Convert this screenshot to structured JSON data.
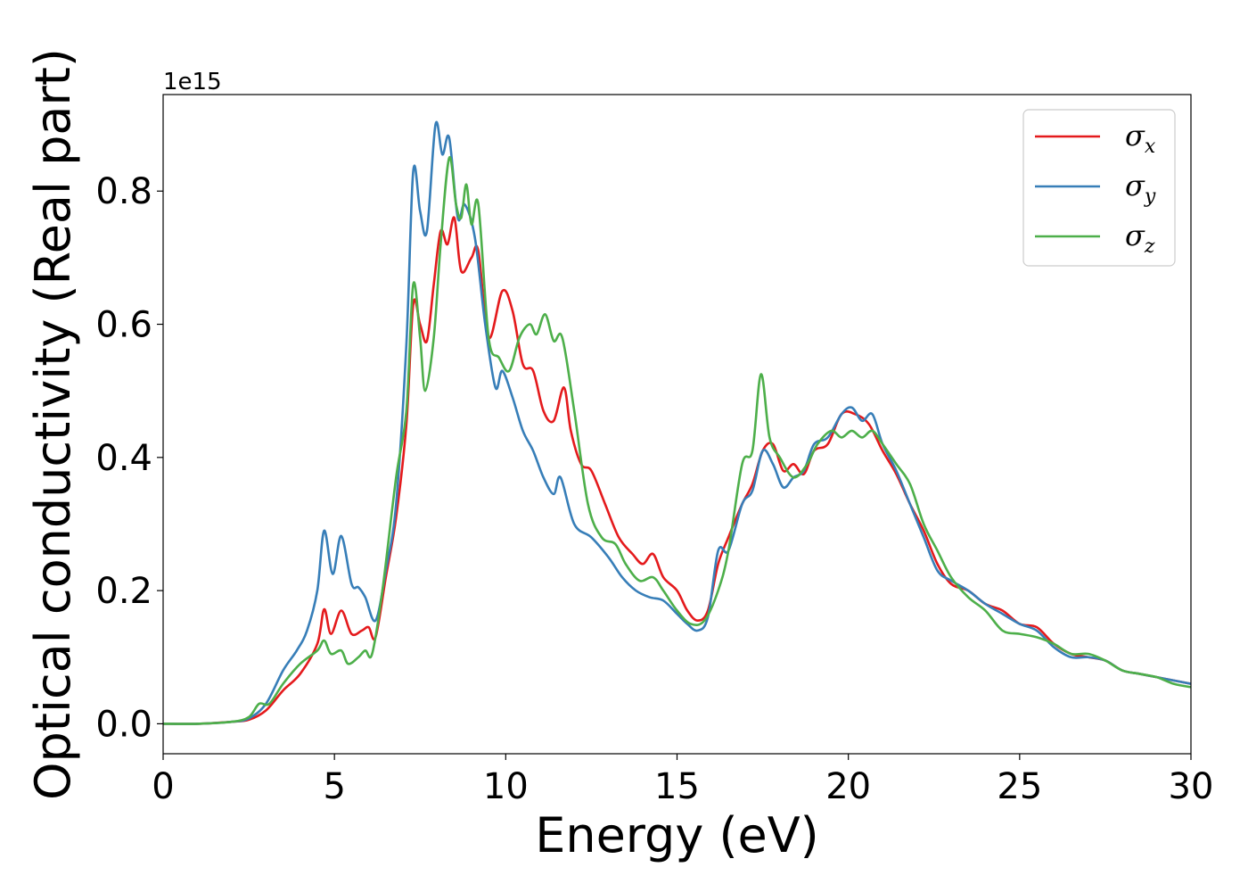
{
  "chart_data": {
    "type": "line",
    "title": "",
    "xlabel": "Energy (eV)",
    "ylabel": "Optical conductivity (Real part)",
    "y_offset_label": "1e15",
    "xlim": [
      0,
      30
    ],
    "ylim": [
      -0.045,
      0.945
    ],
    "xticks": [
      0,
      5,
      10,
      15,
      20,
      25,
      30
    ],
    "xtick_labels": [
      "0",
      "5",
      "10",
      "15",
      "20",
      "25",
      "30"
    ],
    "yticks": [
      0.0,
      0.2,
      0.4,
      0.6,
      0.8
    ],
    "ytick_labels": [
      "0.0",
      "0.2",
      "0.4",
      "0.6",
      "0.8"
    ],
    "grid": false,
    "legend_position": "top-right",
    "series": [
      {
        "name": "σx",
        "sub": "x",
        "color": "#e41a1c",
        "points": [
          [
            0,
            0
          ],
          [
            1,
            0
          ],
          [
            2,
            0.003
          ],
          [
            2.5,
            0.006
          ],
          [
            3,
            0.02
          ],
          [
            3.5,
            0.05
          ],
          [
            4,
            0.075
          ],
          [
            4.5,
            0.12
          ],
          [
            4.7,
            0.172
          ],
          [
            4.9,
            0.135
          ],
          [
            5.2,
            0.17
          ],
          [
            5.5,
            0.135
          ],
          [
            5.8,
            0.14
          ],
          [
            6,
            0.145
          ],
          [
            6.2,
            0.13
          ],
          [
            6.5,
            0.22
          ],
          [
            6.8,
            0.31
          ],
          [
            7.1,
            0.45
          ],
          [
            7.3,
            0.63
          ],
          [
            7.5,
            0.6
          ],
          [
            7.7,
            0.575
          ],
          [
            7.9,
            0.66
          ],
          [
            8.1,
            0.74
          ],
          [
            8.3,
            0.72
          ],
          [
            8.5,
            0.76
          ],
          [
            8.7,
            0.68
          ],
          [
            9,
            0.7
          ],
          [
            9.2,
            0.71
          ],
          [
            9.5,
            0.58
          ],
          [
            9.9,
            0.65
          ],
          [
            10.2,
            0.62
          ],
          [
            10.5,
            0.54
          ],
          [
            10.8,
            0.53
          ],
          [
            11.1,
            0.47
          ],
          [
            11.4,
            0.455
          ],
          [
            11.7,
            0.505
          ],
          [
            11.9,
            0.44
          ],
          [
            12.2,
            0.39
          ],
          [
            12.5,
            0.38
          ],
          [
            12.9,
            0.33
          ],
          [
            13.3,
            0.28
          ],
          [
            13.7,
            0.255
          ],
          [
            14,
            0.24
          ],
          [
            14.3,
            0.255
          ],
          [
            14.6,
            0.22
          ],
          [
            15,
            0.2
          ],
          [
            15.3,
            0.17
          ],
          [
            15.6,
            0.155
          ],
          [
            15.9,
            0.17
          ],
          [
            16.2,
            0.24
          ],
          [
            16.5,
            0.28
          ],
          [
            16.9,
            0.33
          ],
          [
            17.2,
            0.36
          ],
          [
            17.5,
            0.41
          ],
          [
            17.8,
            0.42
          ],
          [
            18.1,
            0.38
          ],
          [
            18.4,
            0.39
          ],
          [
            18.7,
            0.375
          ],
          [
            19,
            0.41
          ],
          [
            19.4,
            0.42
          ],
          [
            19.8,
            0.465
          ],
          [
            20.2,
            0.465
          ],
          [
            20.6,
            0.45
          ],
          [
            21,
            0.41
          ],
          [
            21.4,
            0.375
          ],
          [
            21.8,
            0.33
          ],
          [
            22.2,
            0.29
          ],
          [
            22.6,
            0.24
          ],
          [
            23,
            0.21
          ],
          [
            23.5,
            0.2
          ],
          [
            24,
            0.18
          ],
          [
            24.5,
            0.17
          ],
          [
            25,
            0.15
          ],
          [
            25.5,
            0.145
          ],
          [
            26,
            0.12
          ],
          [
            26.5,
            0.105
          ],
          [
            27,
            0.1
          ],
          [
            27.5,
            0.095
          ],
          [
            28,
            0.08
          ],
          [
            28.5,
            0.075
          ],
          [
            29,
            0.07
          ],
          [
            29.5,
            0.065
          ],
          [
            30,
            0.06
          ]
        ]
      },
      {
        "name": "σy",
        "sub": "y",
        "color": "#377eb8",
        "points": [
          [
            0,
            0
          ],
          [
            1,
            0
          ],
          [
            2,
            0.003
          ],
          [
            2.5,
            0.008
          ],
          [
            3,
            0.03
          ],
          [
            3.5,
            0.08
          ],
          [
            3.9,
            0.11
          ],
          [
            4.2,
            0.14
          ],
          [
            4.5,
            0.2
          ],
          [
            4.7,
            0.29
          ],
          [
            4.95,
            0.225
          ],
          [
            5.2,
            0.282
          ],
          [
            5.5,
            0.21
          ],
          [
            5.7,
            0.205
          ],
          [
            5.9,
            0.19
          ],
          [
            6.2,
            0.155
          ],
          [
            6.5,
            0.23
          ],
          [
            6.8,
            0.33
          ],
          [
            7.1,
            0.57
          ],
          [
            7.3,
            0.83
          ],
          [
            7.5,
            0.77
          ],
          [
            7.7,
            0.74
          ],
          [
            7.95,
            0.9
          ],
          [
            8.15,
            0.855
          ],
          [
            8.35,
            0.88
          ],
          [
            8.6,
            0.76
          ],
          [
            8.8,
            0.78
          ],
          [
            9.1,
            0.73
          ],
          [
            9.4,
            0.6
          ],
          [
            9.7,
            0.505
          ],
          [
            9.9,
            0.53
          ],
          [
            10.2,
            0.49
          ],
          [
            10.5,
            0.44
          ],
          [
            10.8,
            0.41
          ],
          [
            11.1,
            0.37
          ],
          [
            11.4,
            0.345
          ],
          [
            11.6,
            0.37
          ],
          [
            12,
            0.3
          ],
          [
            12.5,
            0.28
          ],
          [
            13,
            0.25
          ],
          [
            13.4,
            0.22
          ],
          [
            13.8,
            0.2
          ],
          [
            14.2,
            0.19
          ],
          [
            14.6,
            0.185
          ],
          [
            15,
            0.165
          ],
          [
            15.3,
            0.15
          ],
          [
            15.6,
            0.14
          ],
          [
            15.9,
            0.16
          ],
          [
            16.2,
            0.26
          ],
          [
            16.5,
            0.26
          ],
          [
            16.9,
            0.33
          ],
          [
            17.2,
            0.35
          ],
          [
            17.5,
            0.41
          ],
          [
            17.8,
            0.39
          ],
          [
            18.1,
            0.355
          ],
          [
            18.4,
            0.37
          ],
          [
            18.7,
            0.38
          ],
          [
            19,
            0.42
          ],
          [
            19.4,
            0.43
          ],
          [
            19.8,
            0.465
          ],
          [
            20.1,
            0.475
          ],
          [
            20.4,
            0.455
          ],
          [
            20.7,
            0.465
          ],
          [
            21,
            0.42
          ],
          [
            21.4,
            0.38
          ],
          [
            21.8,
            0.33
          ],
          [
            22.2,
            0.28
          ],
          [
            22.6,
            0.23
          ],
          [
            23,
            0.215
          ],
          [
            23.5,
            0.2
          ],
          [
            24,
            0.18
          ],
          [
            24.5,
            0.165
          ],
          [
            25,
            0.15
          ],
          [
            25.5,
            0.14
          ],
          [
            26,
            0.115
          ],
          [
            26.5,
            0.1
          ],
          [
            27,
            0.1
          ],
          [
            27.5,
            0.095
          ],
          [
            28,
            0.08
          ],
          [
            28.5,
            0.075
          ],
          [
            29,
            0.07
          ],
          [
            29.5,
            0.065
          ],
          [
            30,
            0.06
          ]
        ]
      },
      {
        "name": "σz",
        "sub": "z",
        "color": "#4daf4a",
        "points": [
          [
            0,
            0
          ],
          [
            1,
            0
          ],
          [
            2,
            0.003
          ],
          [
            2.5,
            0.01
          ],
          [
            2.8,
            0.03
          ],
          [
            3.1,
            0.03
          ],
          [
            3.5,
            0.06
          ],
          [
            4,
            0.09
          ],
          [
            4.5,
            0.11
          ],
          [
            4.7,
            0.125
          ],
          [
            4.9,
            0.105
          ],
          [
            5.2,
            0.11
          ],
          [
            5.4,
            0.09
          ],
          [
            5.7,
            0.1
          ],
          [
            5.9,
            0.11
          ],
          [
            6.1,
            0.105
          ],
          [
            6.4,
            0.2
          ],
          [
            6.8,
            0.37
          ],
          [
            7.1,
            0.47
          ],
          [
            7.3,
            0.66
          ],
          [
            7.5,
            0.58
          ],
          [
            7.65,
            0.5
          ],
          [
            7.9,
            0.58
          ],
          [
            8.1,
            0.72
          ],
          [
            8.35,
            0.85
          ],
          [
            8.55,
            0.78
          ],
          [
            8.7,
            0.76
          ],
          [
            8.85,
            0.81
          ],
          [
            9,
            0.75
          ],
          [
            9.2,
            0.78
          ],
          [
            9.5,
            0.58
          ],
          [
            9.8,
            0.55
          ],
          [
            10.1,
            0.53
          ],
          [
            10.4,
            0.58
          ],
          [
            10.7,
            0.6
          ],
          [
            10.9,
            0.585
          ],
          [
            11.15,
            0.615
          ],
          [
            11.4,
            0.575
          ],
          [
            11.65,
            0.58
          ],
          [
            12,
            0.47
          ],
          [
            12.4,
            0.33
          ],
          [
            12.8,
            0.28
          ],
          [
            13.2,
            0.27
          ],
          [
            13.5,
            0.24
          ],
          [
            13.9,
            0.215
          ],
          [
            14.3,
            0.22
          ],
          [
            14.6,
            0.2
          ],
          [
            15,
            0.17
          ],
          [
            15.4,
            0.15
          ],
          [
            15.8,
            0.155
          ],
          [
            16.2,
            0.2
          ],
          [
            16.5,
            0.26
          ],
          [
            16.9,
            0.39
          ],
          [
            17.2,
            0.41
          ],
          [
            17.45,
            0.525
          ],
          [
            17.7,
            0.43
          ],
          [
            18,
            0.4
          ],
          [
            18.4,
            0.37
          ],
          [
            18.8,
            0.39
          ],
          [
            19.1,
            0.42
          ],
          [
            19.5,
            0.44
          ],
          [
            19.8,
            0.43
          ],
          [
            20.1,
            0.44
          ],
          [
            20.4,
            0.43
          ],
          [
            20.7,
            0.44
          ],
          [
            21,
            0.42
          ],
          [
            21.4,
            0.39
          ],
          [
            21.8,
            0.36
          ],
          [
            22.2,
            0.3
          ],
          [
            22.6,
            0.26
          ],
          [
            23,
            0.22
          ],
          [
            23.5,
            0.19
          ],
          [
            24,
            0.17
          ],
          [
            24.5,
            0.14
          ],
          [
            25,
            0.135
          ],
          [
            25.5,
            0.13
          ],
          [
            26,
            0.12
          ],
          [
            26.5,
            0.105
          ],
          [
            27,
            0.105
          ],
          [
            27.5,
            0.095
          ],
          [
            28,
            0.08
          ],
          [
            28.5,
            0.075
          ],
          [
            29,
            0.07
          ],
          [
            29.5,
            0.06
          ],
          [
            30,
            0.055
          ]
        ]
      }
    ]
  }
}
